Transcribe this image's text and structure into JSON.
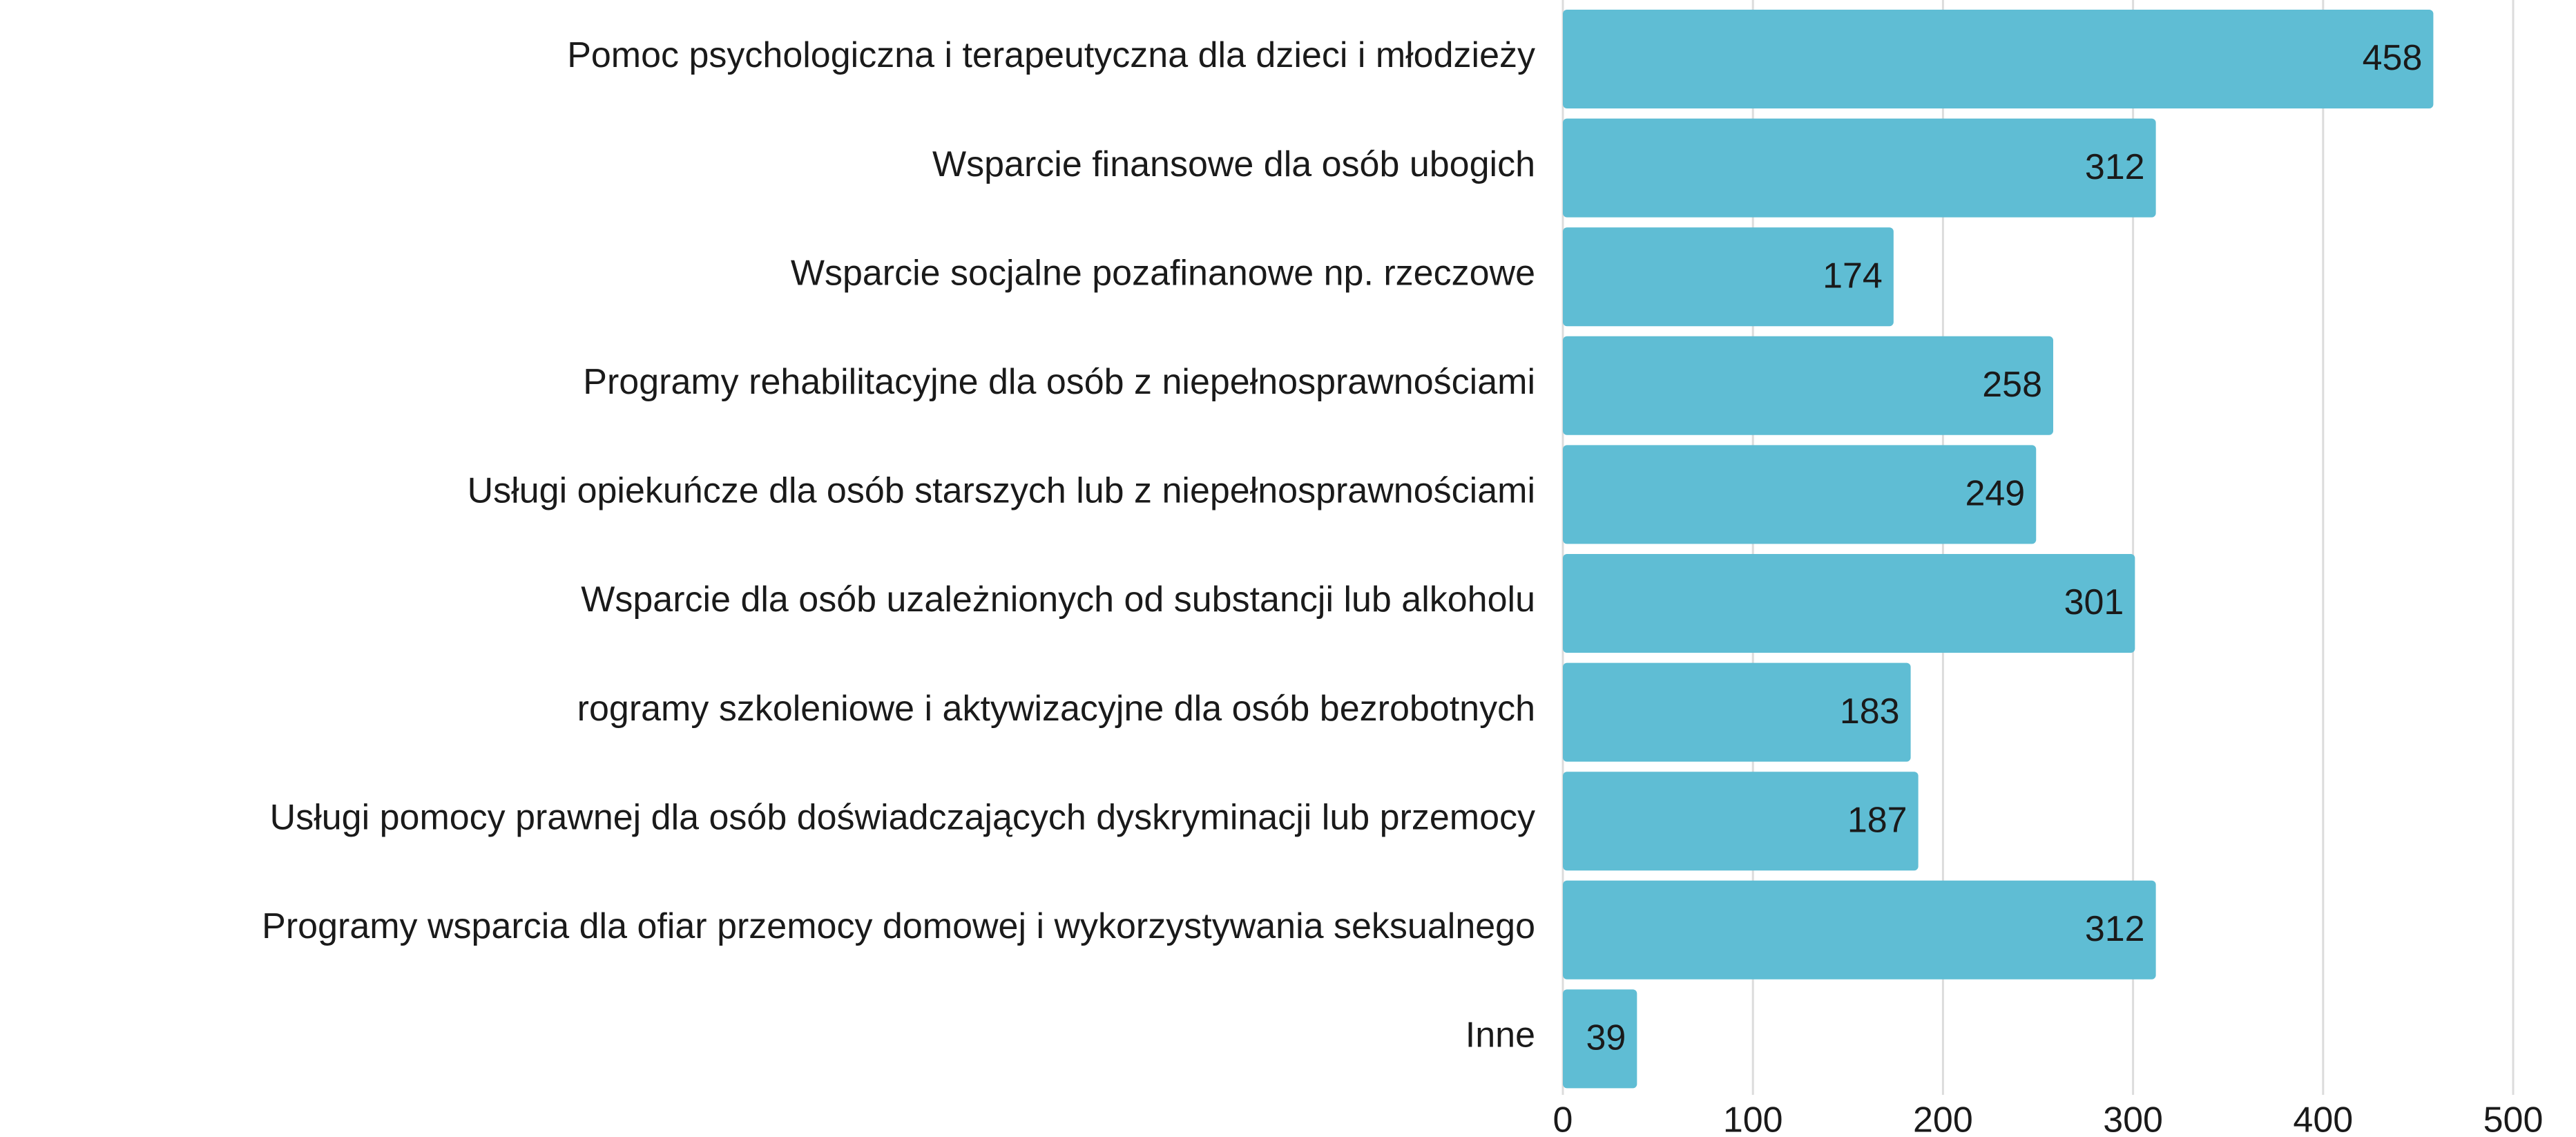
{
  "chart_data": {
    "type": "bar",
    "orientation": "horizontal",
    "categories": [
      "Pomoc psychologiczna i terapeutyczna dla dzieci i młodzieży",
      "Wsparcie finansowe dla osób ubogich",
      "Wsparcie socjalne pozafinanowe np. rzeczowe",
      "Programy rehabilitacyjne dla osób z niepełnosprawnościami",
      "Usługi opiekuńcze dla osób starszych lub z niepełnosprawnościami",
      "Wsparcie dla osób uzależnionych od substancji lub alkoholu",
      "rogramy szkoleniowe i aktywizacyjne dla osób bezrobotnych",
      "Usługi pomocy prawnej dla osób doświadczających dyskryminacji lub przemocy",
      "Programy wsparcia dla ofiar przemocy domowej i wykorzystywania seksualnego",
      "Inne"
    ],
    "values": [
      458,
      312,
      174,
      258,
      249,
      301,
      183,
      187,
      312,
      39
    ],
    "color": "#5fbdd4",
    "xlim": [
      0,
      500
    ],
    "xticks": [
      0,
      100,
      200,
      300,
      400,
      500
    ],
    "grid": true
  }
}
